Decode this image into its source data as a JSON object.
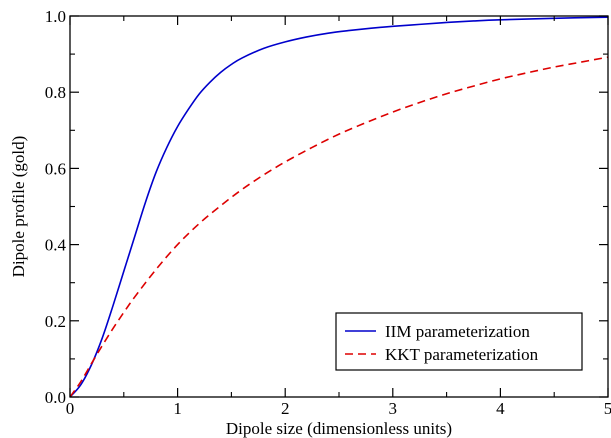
{
  "chart_data": {
    "type": "line",
    "title": "",
    "xlabel": "Dipole size (dimensionless units)",
    "ylabel": "Dipole profile (gold)",
    "xlim": [
      0,
      5
    ],
    "ylim": [
      0,
      1
    ],
    "x_ticks": [
      "0",
      "1",
      "2",
      "3",
      "4",
      "5"
    ],
    "y_ticks": [
      "0.0",
      "0.2",
      "0.4",
      "0.6",
      "0.8",
      "1.0"
    ],
    "grid": false,
    "legend_position": "bottom-right",
    "series": [
      {
        "name": "IIM parameterization",
        "color": "#0000cc",
        "dash": "solid",
        "x": [
          0,
          0.1,
          0.2,
          0.3,
          0.4,
          0.5,
          0.6,
          0.7,
          0.8,
          0.9,
          1.0,
          1.1,
          1.2,
          1.3,
          1.4,
          1.5,
          1.6,
          1.8,
          2.0,
          2.2,
          2.4,
          2.6,
          2.8,
          3.0,
          3.25,
          3.5,
          3.75,
          4.0,
          4.5,
          5.0
        ],
        "y": [
          0,
          0.032,
          0.085,
          0.155,
          0.24,
          0.33,
          0.42,
          0.51,
          0.59,
          0.655,
          0.71,
          0.755,
          0.795,
          0.826,
          0.852,
          0.873,
          0.89,
          0.915,
          0.932,
          0.945,
          0.955,
          0.962,
          0.968,
          0.973,
          0.978,
          0.983,
          0.987,
          0.99,
          0.994,
          0.997
        ]
      },
      {
        "name": "KKT parameterization",
        "color": "#dd0000",
        "dash": "dashed",
        "x": [
          0,
          0.1,
          0.2,
          0.3,
          0.4,
          0.5,
          0.6,
          0.8,
          1.0,
          1.2,
          1.4,
          1.6,
          1.8,
          2.0,
          2.25,
          2.5,
          2.75,
          3.0,
          3.25,
          3.5,
          3.75,
          4.0,
          4.25,
          4.5,
          4.75,
          5.0
        ],
        "y": [
          0,
          0.04,
          0.088,
          0.135,
          0.18,
          0.222,
          0.262,
          0.335,
          0.4,
          0.455,
          0.502,
          0.545,
          0.583,
          0.617,
          0.655,
          0.69,
          0.72,
          0.748,
          0.773,
          0.796,
          0.816,
          0.835,
          0.851,
          0.866,
          0.879,
          0.892
        ]
      }
    ]
  }
}
